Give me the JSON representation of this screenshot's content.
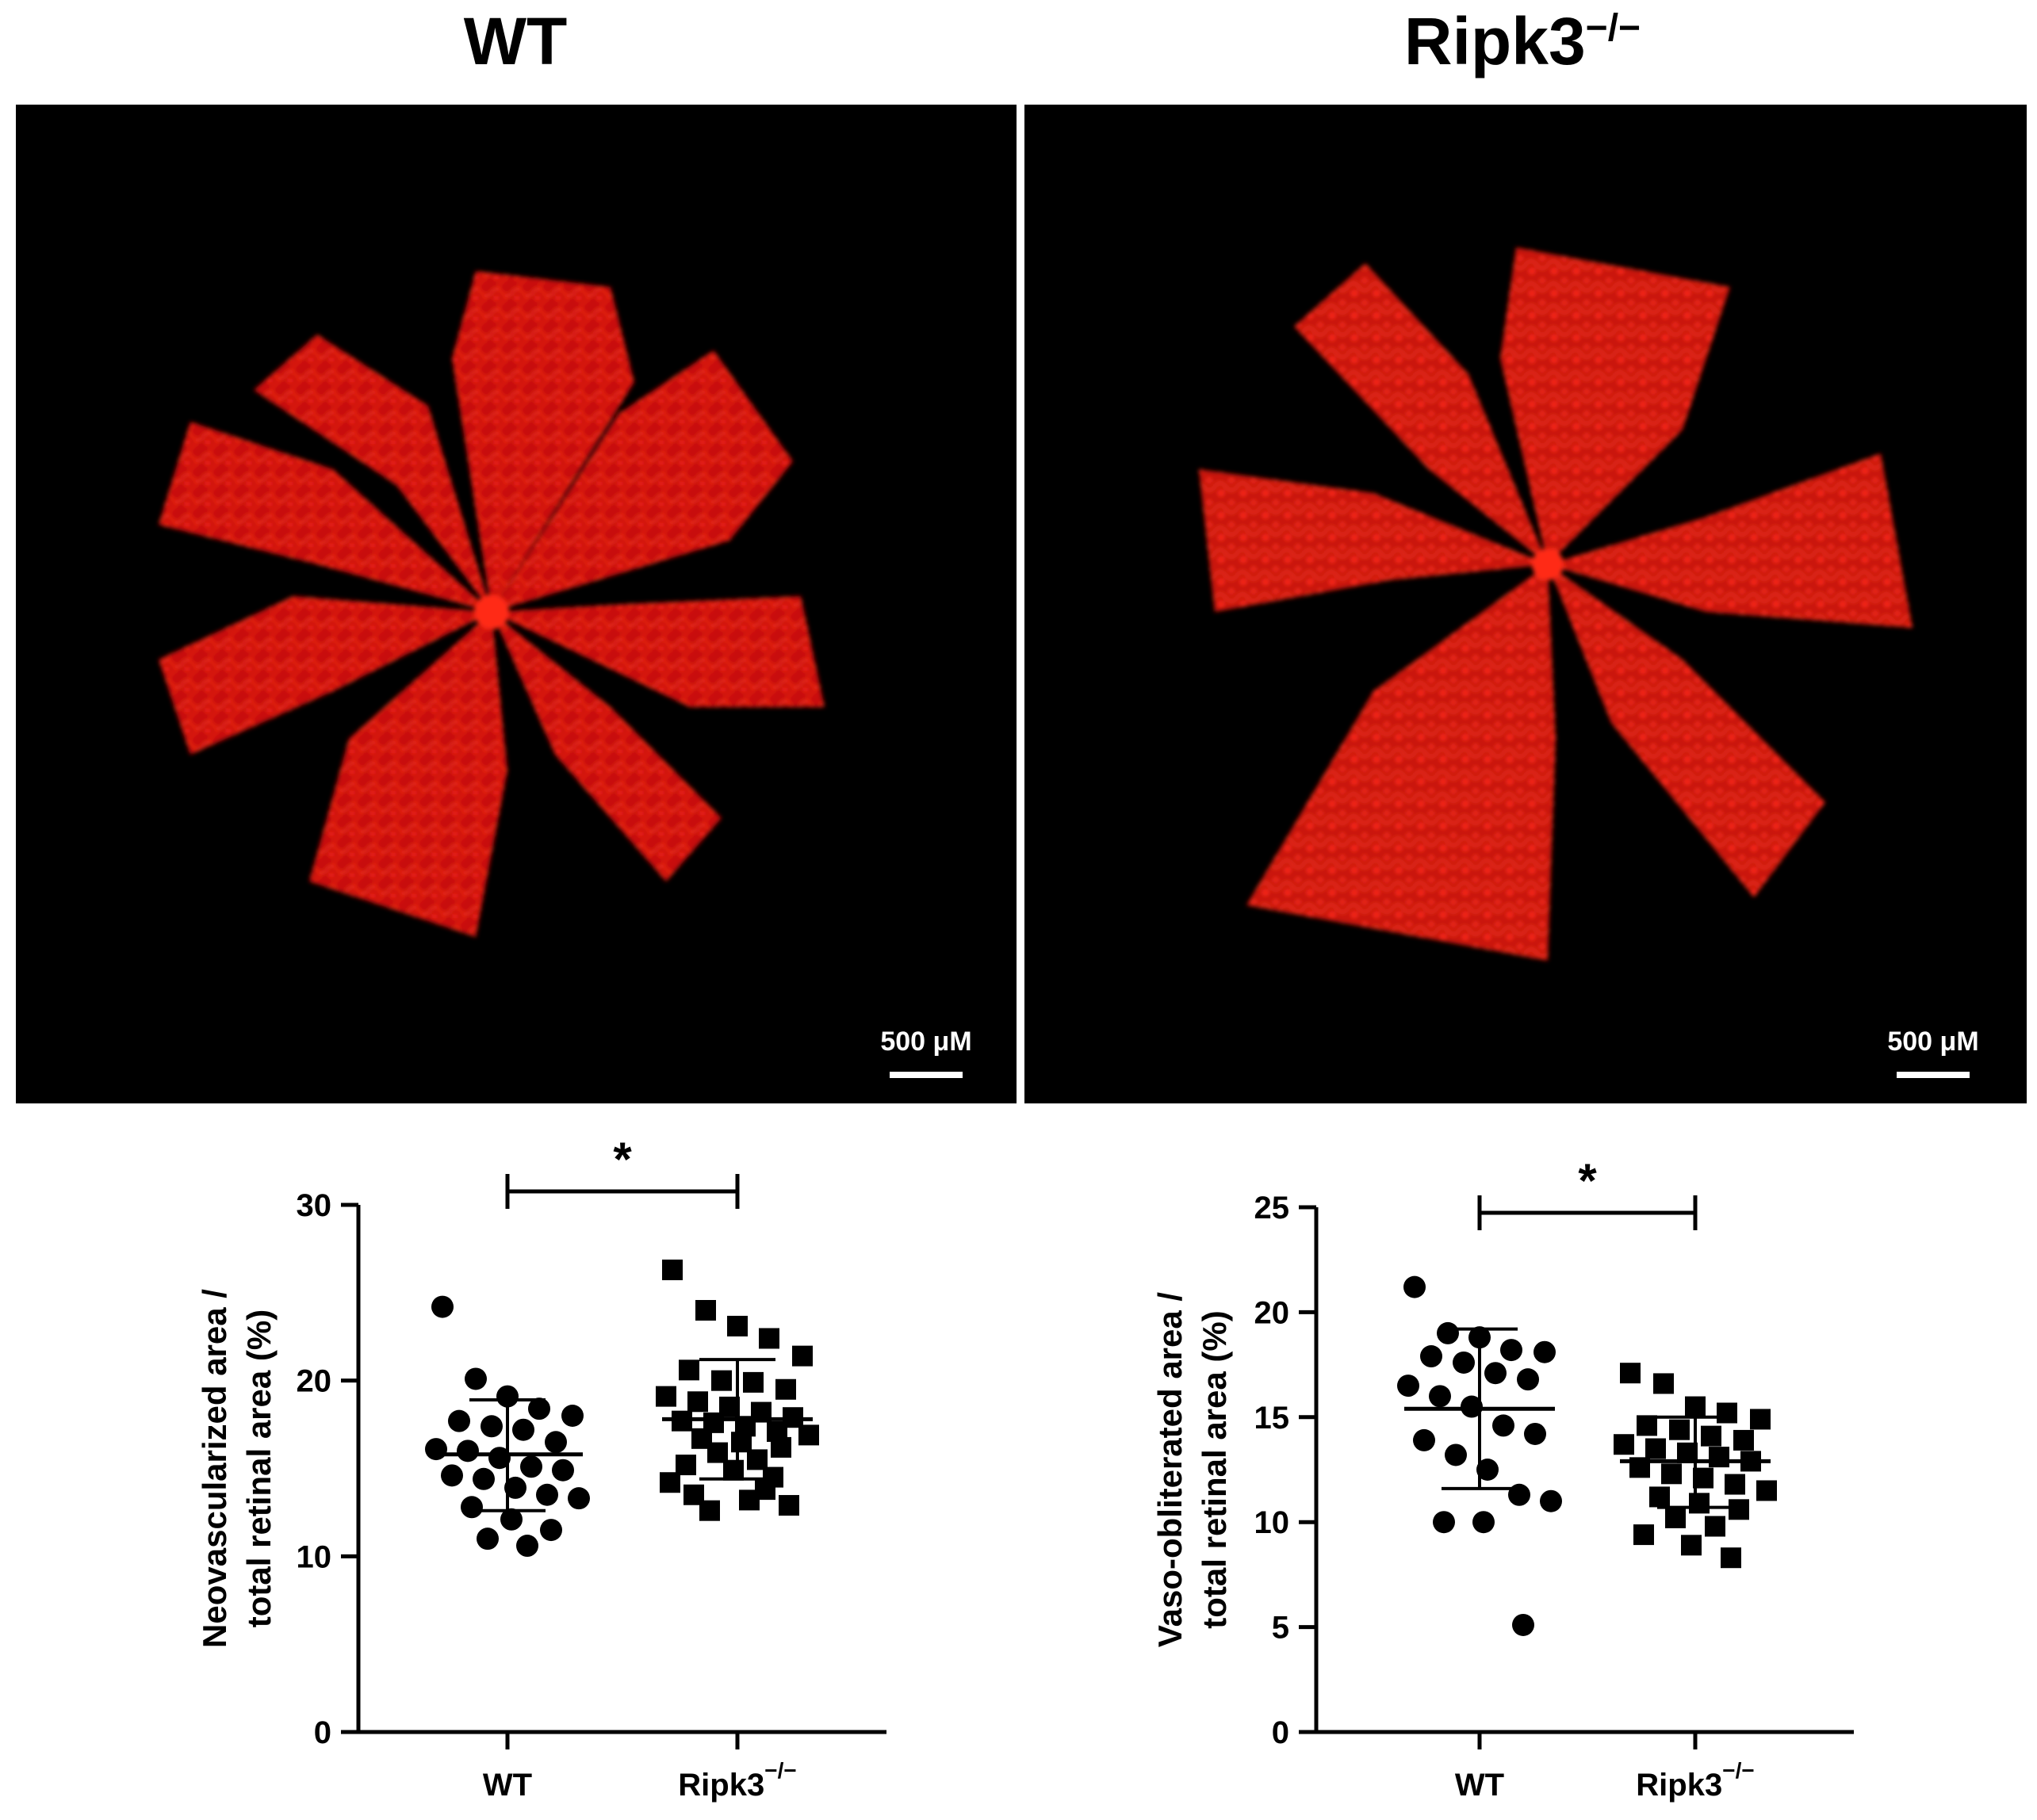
{
  "panels": [
    {
      "title": "WT",
      "scalebar": "500 μM"
    },
    {
      "title": "Ripk3",
      "title_sup": "−/−",
      "scalebar": "500 μM"
    }
  ],
  "colors": {
    "retina": "#ff1a0d",
    "background": "#000000",
    "ink": "#000000"
  },
  "chart_data": [
    {
      "type": "scatter",
      "categories": [
        "WT",
        "Ripk3"
      ],
      "category_sup": [
        "",
        "−/−"
      ],
      "ylabel_line1": "Neovascularized area /",
      "ylabel_line2": "total retinal area (%)",
      "ylim": [
        0,
        30
      ],
      "yticks": [
        0,
        10,
        20,
        30
      ],
      "significance": "*",
      "series": [
        {
          "values": [
            24.2,
            20.1,
            19.1,
            18.4,
            18.0,
            17.7,
            17.4,
            17.2,
            16.5,
            16.1,
            16.0,
            15.6,
            15.1,
            14.9,
            14.6,
            14.4,
            13.9,
            13.5,
            13.3,
            12.8,
            12.1,
            11.5,
            11.0,
            10.6
          ],
          "mean": 15.8,
          "sd_low": 12.6,
          "sd_high": 18.9,
          "marker": "circle"
        },
        {
          "values": [
            26.3,
            24.0,
            23.1,
            22.4,
            21.4,
            20.6,
            20.0,
            19.9,
            19.5,
            19.1,
            18.8,
            18.5,
            18.2,
            17.9,
            17.7,
            17.6,
            17.4,
            17.1,
            16.9,
            16.7,
            16.5,
            16.2,
            15.9,
            15.5,
            15.2,
            14.9,
            14.5,
            14.2,
            13.8,
            13.5,
            13.2,
            12.9,
            12.6
          ],
          "mean": 17.8,
          "sd_low": 14.4,
          "sd_high": 21.2,
          "marker": "square"
        }
      ]
    },
    {
      "type": "scatter",
      "categories": [
        "WT",
        "Ripk3"
      ],
      "category_sup": [
        "",
        "−/−"
      ],
      "ylabel_line1": "Vaso-obliterated area /",
      "ylabel_line2": "total retinal area (%)",
      "ylim": [
        0,
        25
      ],
      "yticks": [
        0,
        5,
        10,
        15,
        20,
        25
      ],
      "significance": "*",
      "series": [
        {
          "values": [
            21.2,
            19.0,
            18.8,
            18.2,
            18.1,
            17.9,
            17.6,
            17.1,
            16.8,
            16.5,
            16.0,
            15.5,
            14.6,
            14.2,
            13.9,
            13.2,
            12.5,
            11.3,
            11.0,
            10.0,
            10.0,
            5.1
          ],
          "mean": 15.4,
          "sd_low": 11.6,
          "sd_high": 19.2,
          "marker": "circle"
        },
        {
          "values": [
            17.1,
            16.6,
            15.5,
            15.2,
            14.9,
            14.6,
            14.4,
            14.1,
            13.9,
            13.7,
            13.5,
            13.3,
            13.1,
            12.9,
            12.6,
            12.3,
            12.1,
            11.8,
            11.5,
            11.2,
            10.9,
            10.6,
            10.2,
            9.8,
            9.4,
            8.9,
            8.3
          ],
          "mean": 12.9,
          "sd_low": 10.7,
          "sd_high": 15.0,
          "marker": "square"
        }
      ]
    }
  ]
}
